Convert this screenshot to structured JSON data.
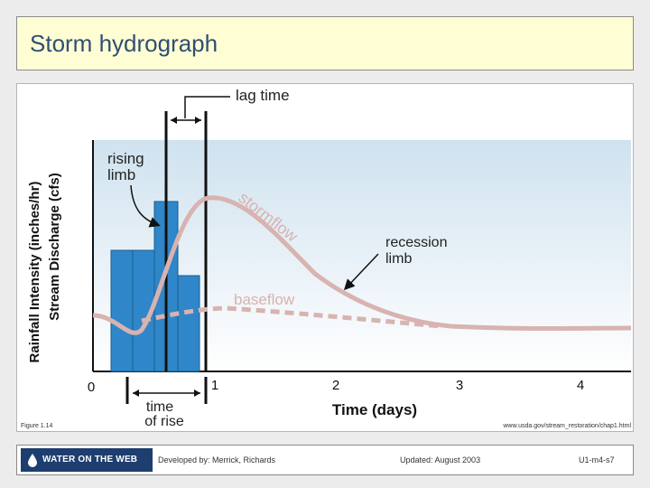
{
  "slide": {
    "title": "Storm hydrograph"
  },
  "figure": {
    "y_axis_labels": [
      "Rainfall Intensity (inches/hr)",
      "Stream Discharge (cfs)"
    ],
    "x_axis_label": "Time (days)",
    "x_ticks": [
      "0",
      "1",
      "2",
      "3",
      "4"
    ],
    "annotations": {
      "lag_time": "lag time",
      "rising_limb_1": "rising",
      "rising_limb_2": "limb",
      "stormflow": "stormflow",
      "recession_limb_1": "recession",
      "recession_limb_2": "limb",
      "baseflow": "baseflow",
      "time_of_rise_1": "time",
      "time_of_rise_2": "of rise"
    },
    "caption_left": "Figure 1.14",
    "caption_right": "www.usda.gov/stream_restoration/chap1.html",
    "colors": {
      "rainfall_bars": "#2f86c8",
      "hydrograph": "#d8b3b0",
      "background_band": "#d9e9f3"
    }
  },
  "footer": {
    "logo_text": "WATER ON THE WEB",
    "developed_by": "Developed by: Merrick, Richards",
    "updated": "Updated: August 2003",
    "slide_id": "U1-m4-s7"
  }
}
